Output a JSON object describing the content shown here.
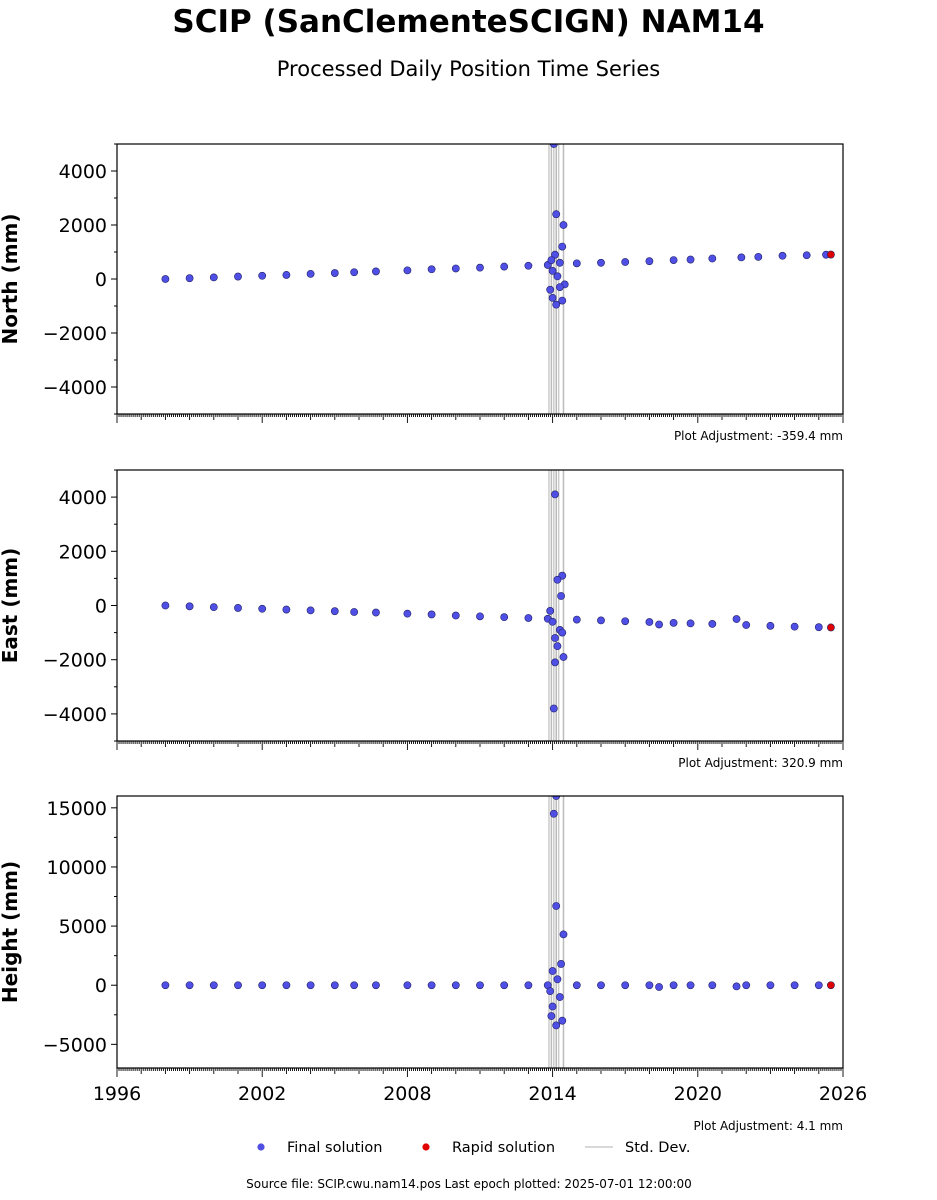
{
  "title": "SCIP (SanClementeSCIGN) NAM14",
  "subtitle": "Processed Daily Position Time Series",
  "footer": "Source file: SCIP.cwu.nam14.pos  Last epoch plotted: 2025-07-01 12:00:00",
  "legend": [
    {
      "label": "Final solution",
      "kind": "marker",
      "color": "#4f4fe6"
    },
    {
      "label": "Rapid solution",
      "kind": "marker",
      "color": "#e00000"
    },
    {
      "label": "Std. Dev.",
      "kind": "line",
      "color": "#cccccc"
    }
  ],
  "x_tick_labels": [
    "1996",
    "2002",
    "2008",
    "2014",
    "2020",
    "2026"
  ],
  "chart_data": [
    {
      "type": "scatter",
      "ylabel": "North (mm)",
      "xlim": [
        1996,
        2026
      ],
      "ylim": [
        -5000,
        5000
      ],
      "yticks": [
        -4000,
        -2000,
        0,
        2000,
        4000
      ],
      "ytick_labels": [
        "−4000",
        "−2000",
        "0",
        "2000",
        "4000"
      ],
      "adjustment": "Plot Adjustment: -359.4 mm",
      "grid": false,
      "series": [
        {
          "name": "Final solution",
          "points": [
            [
              1998.0,
              0
            ],
            [
              1999.0,
              30
            ],
            [
              2000.0,
              60
            ],
            [
              2001.0,
              90
            ],
            [
              2002.0,
              120
            ],
            [
              2003.0,
              150
            ],
            [
              2004.0,
              190
            ],
            [
              2005.0,
              220
            ],
            [
              2005.8,
              250
            ],
            [
              2006.7,
              280
            ],
            [
              2008.0,
              320
            ],
            [
              2009.0,
              360
            ],
            [
              2010.0,
              390
            ],
            [
              2011.0,
              420
            ],
            [
              2012.0,
              460
            ],
            [
              2013.0,
              490
            ],
            [
              2013.8,
              520
            ],
            [
              2014.05,
              5000
            ],
            [
              2014.15,
              2400
            ],
            [
              2014.45,
              2000
            ],
            [
              2014.4,
              1200
            ],
            [
              2014.1,
              900
            ],
            [
              2013.95,
              700
            ],
            [
              2014.3,
              600
            ],
            [
              2014.0,
              300
            ],
            [
              2014.2,
              100
            ],
            [
              2014.5,
              -200
            ],
            [
              2013.9,
              -400
            ],
            [
              2014.0,
              -700
            ],
            [
              2014.4,
              -800
            ],
            [
              2014.15,
              -950
            ],
            [
              2014.3,
              -300
            ],
            [
              2015.0,
              580
            ],
            [
              2016.0,
              600
            ],
            [
              2017.0,
              630
            ],
            [
              2018.0,
              660
            ],
            [
              2019.0,
              700
            ],
            [
              2019.7,
              720
            ],
            [
              2020.6,
              760
            ],
            [
              2021.8,
              800
            ],
            [
              2022.5,
              820
            ],
            [
              2023.5,
              860
            ],
            [
              2024.5,
              880
            ],
            [
              2025.3,
              900
            ]
          ]
        },
        {
          "name": "Rapid solution",
          "points": [
            [
              2025.5,
              905
            ]
          ]
        }
      ]
    },
    {
      "type": "scatter",
      "ylabel": "East (mm)",
      "xlim": [
        1996,
        2026
      ],
      "ylim": [
        -5000,
        5000
      ],
      "yticks": [
        -4000,
        -2000,
        0,
        2000,
        4000
      ],
      "ytick_labels": [
        "−4000",
        "−2000",
        "0",
        "2000",
        "4000"
      ],
      "adjustment": "Plot Adjustment: 320.9 mm",
      "grid": false,
      "series": [
        {
          "name": "Final solution",
          "points": [
            [
              1998.0,
              0
            ],
            [
              1999.0,
              -30
            ],
            [
              2000.0,
              -60
            ],
            [
              2001.0,
              -90
            ],
            [
              2002.0,
              -120
            ],
            [
              2003.0,
              -150
            ],
            [
              2004.0,
              -180
            ],
            [
              2005.0,
              -210
            ],
            [
              2005.8,
              -240
            ],
            [
              2006.7,
              -260
            ],
            [
              2008.0,
              -300
            ],
            [
              2009.0,
              -330
            ],
            [
              2010.0,
              -370
            ],
            [
              2011.0,
              -400
            ],
            [
              2012.0,
              -430
            ],
            [
              2013.0,
              -460
            ],
            [
              2013.8,
              -490
            ],
            [
              2014.1,
              4100
            ],
            [
              2014.4,
              1100
            ],
            [
              2014.2,
              950
            ],
            [
              2014.35,
              350
            ],
            [
              2013.9,
              -200
            ],
            [
              2014.0,
              -600
            ],
            [
              2014.3,
              -900
            ],
            [
              2014.1,
              -1200
            ],
            [
              2014.2,
              -1500
            ],
            [
              2014.45,
              -1900
            ],
            [
              2014.1,
              -2100
            ],
            [
              2014.05,
              -3800
            ],
            [
              2014.4,
              -1000
            ],
            [
              2015.0,
              -520
            ],
            [
              2016.0,
              -550
            ],
            [
              2017.0,
              -580
            ],
            [
              2018.0,
              -610
            ],
            [
              2018.4,
              -700
            ],
            [
              2019.0,
              -640
            ],
            [
              2019.7,
              -660
            ],
            [
              2020.6,
              -680
            ],
            [
              2021.6,
              -500
            ],
            [
              2022.0,
              -720
            ],
            [
              2023.0,
              -750
            ],
            [
              2024.0,
              -780
            ],
            [
              2025.0,
              -800
            ]
          ]
        },
        {
          "name": "Rapid solution",
          "points": [
            [
              2025.5,
              -810
            ]
          ]
        }
      ]
    },
    {
      "type": "scatter",
      "ylabel": "Height (mm)",
      "xlim": [
        1996,
        2026
      ],
      "ylim": [
        -7000,
        16000
      ],
      "yticks": [
        -5000,
        0,
        5000,
        10000,
        15000
      ],
      "ytick_labels": [
        "−5000",
        "0",
        "5000",
        "10000",
        "15000"
      ],
      "adjustment": "Plot Adjustment: 4.1 mm",
      "grid": false,
      "series": [
        {
          "name": "Final solution",
          "points": [
            [
              1998.0,
              0
            ],
            [
              1999.0,
              0
            ],
            [
              2000.0,
              0
            ],
            [
              2001.0,
              0
            ],
            [
              2002.0,
              0
            ],
            [
              2003.0,
              0
            ],
            [
              2004.0,
              0
            ],
            [
              2005.0,
              0
            ],
            [
              2005.8,
              0
            ],
            [
              2006.7,
              0
            ],
            [
              2008.0,
              0
            ],
            [
              2009.0,
              0
            ],
            [
              2010.0,
              0
            ],
            [
              2011.0,
              0
            ],
            [
              2012.0,
              0
            ],
            [
              2013.0,
              0
            ],
            [
              2013.8,
              0
            ],
            [
              2014.15,
              16000
            ],
            [
              2014.05,
              14500
            ],
            [
              2014.15,
              6700
            ],
            [
              2014.45,
              4300
            ],
            [
              2014.35,
              1800
            ],
            [
              2014.0,
              1200
            ],
            [
              2014.2,
              500
            ],
            [
              2013.9,
              -500
            ],
            [
              2014.3,
              -1000
            ],
            [
              2014.0,
              -1800
            ],
            [
              2013.95,
              -2600
            ],
            [
              2014.4,
              -3000
            ],
            [
              2014.15,
              -3400
            ],
            [
              2015.0,
              0
            ],
            [
              2016.0,
              0
            ],
            [
              2017.0,
              0
            ],
            [
              2018.0,
              0
            ],
            [
              2018.4,
              -150
            ],
            [
              2019.0,
              0
            ],
            [
              2019.7,
              0
            ],
            [
              2020.6,
              0
            ],
            [
              2021.6,
              -100
            ],
            [
              2022.0,
              0
            ],
            [
              2023.0,
              0
            ],
            [
              2024.0,
              0
            ],
            [
              2025.0,
              0
            ]
          ]
        },
        {
          "name": "Rapid solution",
          "points": [
            [
              2025.5,
              0
            ]
          ]
        }
      ]
    }
  ]
}
